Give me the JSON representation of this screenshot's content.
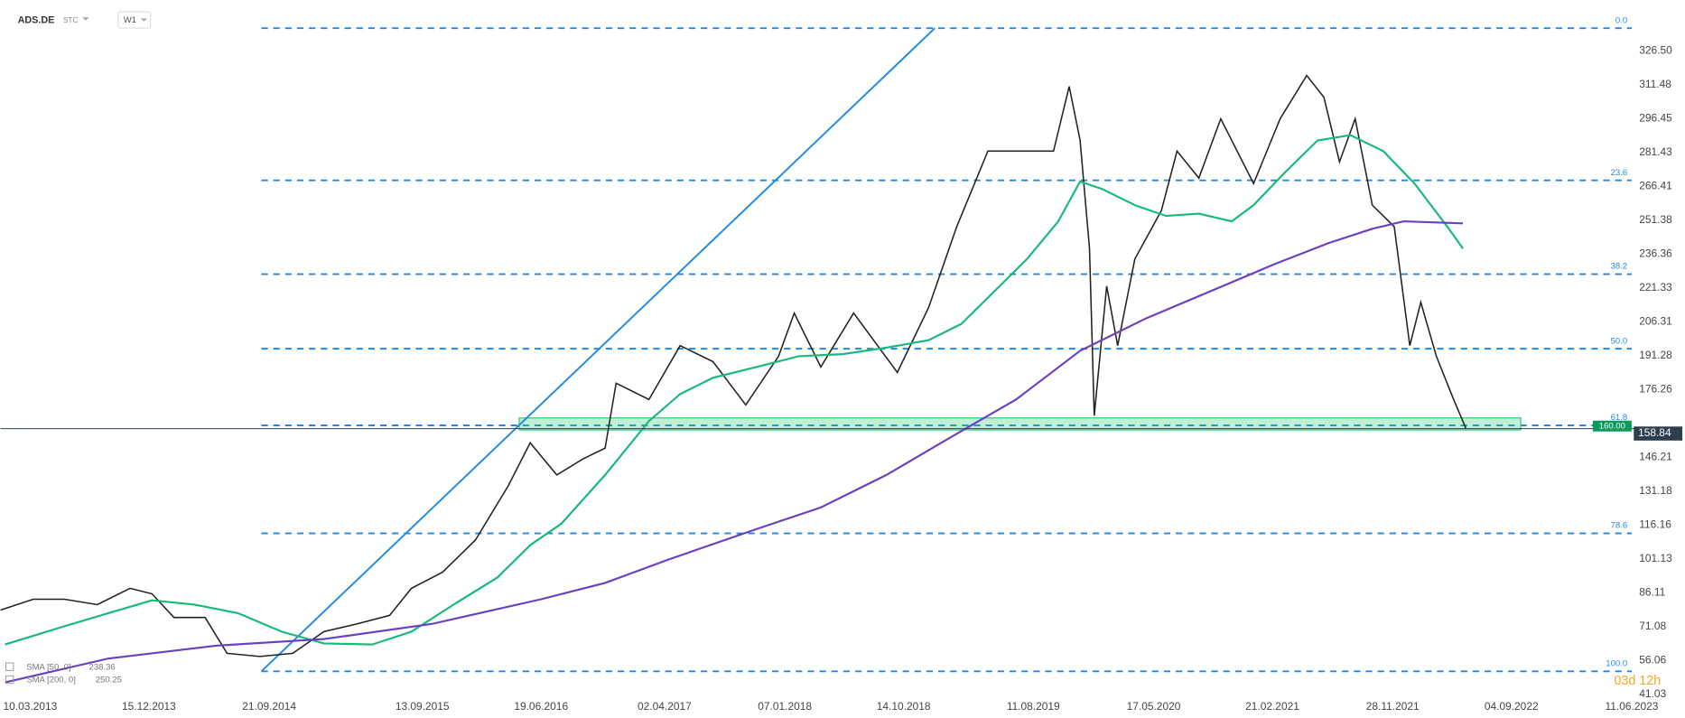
{
  "chart_data": {
    "type": "line",
    "symbol": "ADS.DE",
    "source": "STC",
    "timeframe": "W1",
    "countdown": "03d 12h",
    "xlim": [
      2013.0,
      2023.64
    ],
    "ylim": [
      30.5,
      349.0
    ],
    "xticks": [
      {
        "value": 2013.19,
        "label": "10.03.2013"
      },
      {
        "value": 2013.95,
        "label": "15.12.2013"
      },
      {
        "value": 2014.72,
        "label": "21.09.2014"
      },
      {
        "value": 2015.7,
        "label": "13.09.2015"
      },
      {
        "value": 2016.46,
        "label": "19.06.2016"
      },
      {
        "value": 2017.25,
        "label": "02.04.2017"
      },
      {
        "value": 2018.02,
        "label": "07.01.2018"
      },
      {
        "value": 2018.78,
        "label": "14.10.2018"
      },
      {
        "value": 2019.61,
        "label": "11.08.2019"
      },
      {
        "value": 2020.38,
        "label": "17.05.2020"
      },
      {
        "value": 2021.14,
        "label": "21.02.2021"
      },
      {
        "value": 2021.91,
        "label": "28.11.2021"
      },
      {
        "value": 2022.67,
        "label": "04.09.2022"
      },
      {
        "value": 2023.44,
        "label": "11.06.2023"
      }
    ],
    "yticks": [
      {
        "value": 326.5,
        "label": "326.50"
      },
      311.48,
      296.45,
      281.43,
      266.41,
      251.38,
      236.36,
      221.33,
      206.31,
      191.28,
      176.26,
      146.21,
      131.18,
      116.16,
      101.13,
      86.11,
      71.08,
      56.06,
      41.03
    ],
    "grid": false,
    "series": [
      {
        "name": "ADS.DE",
        "color": "#222222",
        "x": [
          2013.0,
          2013.21,
          2013.41,
          2013.62,
          2013.83,
          2013.97,
          2014.11,
          2014.31,
          2014.45,
          2014.66,
          2014.87,
          2015.07,
          2015.28,
          2015.49,
          2015.63,
          2015.83,
          2016.04,
          2016.25,
          2016.39,
          2016.56,
          2016.73,
          2016.87,
          2016.94,
          2017.15,
          2017.35,
          2017.56,
          2017.77,
          2017.98,
          2018.08,
          2018.25,
          2018.46,
          2018.74,
          2018.94,
          2019.12,
          2019.32,
          2019.53,
          2019.74,
          2019.84,
          2019.91,
          2019.97,
          2020.0,
          2020.08,
          2020.15,
          2020.26,
          2020.43,
          2020.53,
          2020.67,
          2020.81,
          2021.02,
          2021.19,
          2021.36,
          2021.47,
          2021.57,
          2021.67,
          2021.78,
          2021.92,
          2022.02,
          2022.09,
          2022.19,
          2022.3,
          2022.38
        ],
        "values": [
          78.4,
          83.2,
          83.2,
          80.8,
          88.0,
          85.6,
          75.1,
          75.1,
          59.2,
          57.8,
          59.2,
          68.8,
          72.2,
          76.0,
          88.0,
          95.2,
          109.5,
          133.5,
          152.6,
          138.3,
          145.5,
          150.2,
          179.0,
          171.8,
          195.7,
          188.6,
          169.4,
          191.0,
          210.1,
          186.2,
          210.1,
          183.8,
          212.5,
          248.4,
          282.0,
          282.0,
          282.0,
          310.7,
          286.7,
          238.8,
          164.6,
          222.1,
          195.7,
          234.1,
          255.6,
          282.0,
          270.0,
          296.3,
          267.6,
          296.3,
          315.5,
          305.9,
          277.2,
          296.3,
          258.0,
          248.4,
          195.7,
          214.9,
          191.0,
          171.8,
          158.84
        ]
      },
      {
        "name": "SMA [50, 0]",
        "last": 238.36,
        "color": "#17b978",
        "x": [
          2013.03,
          2013.41,
          2013.69,
          2013.97,
          2014.24,
          2014.52,
          2014.8,
          2015.07,
          2015.38,
          2015.63,
          2015.9,
          2016.18,
          2016.39,
          2016.59,
          2016.87,
          2017.15,
          2017.35,
          2017.56,
          2017.84,
          2018.11,
          2018.39,
          2018.67,
          2018.94,
          2019.15,
          2019.36,
          2019.57,
          2019.77,
          2019.91,
          2020.05,
          2020.26,
          2020.46,
          2020.67,
          2020.88,
          2021.02,
          2021.22,
          2021.43,
          2021.64,
          2021.85,
          2022.05,
          2022.26,
          2022.36
        ],
        "values": [
          63.1,
          71.2,
          77.0,
          82.7,
          80.8,
          77.0,
          68.8,
          63.6,
          63.1,
          68.8,
          80.8,
          92.8,
          107.2,
          116.7,
          138.3,
          162.2,
          174.2,
          181.4,
          186.2,
          191.0,
          191.9,
          194.8,
          198.1,
          205.3,
          219.7,
          234.1,
          250.8,
          268.5,
          265.2,
          258.0,
          253.2,
          254.2,
          250.8,
          258.0,
          272.4,
          286.7,
          289.1,
          282.0,
          267.6,
          248.4,
          238.8
        ]
      },
      {
        "name": "SMA [200, 0]",
        "last": 250.25,
        "color": "#6a3fc1",
        "x": [
          2013.03,
          2013.69,
          2014.38,
          2015.07,
          2015.76,
          2016.46,
          2016.87,
          2017.28,
          2017.84,
          2018.25,
          2018.67,
          2019.08,
          2019.5,
          2019.91,
          2020.33,
          2020.74,
          2021.15,
          2021.5,
          2021.78,
          2021.98,
          2022.36
        ],
        "values": [
          46.3,
          56.9,
          62.6,
          65.5,
          72.2,
          83.2,
          90.4,
          100.9,
          114.3,
          123.9,
          138.3,
          155.0,
          171.8,
          193.4,
          207.7,
          219.7,
          231.7,
          241.2,
          247.5,
          250.8,
          249.9
        ]
      }
    ],
    "fibonacci": {
      "color": "#1e88e5",
      "x": [
        2014.67,
        2023.44
      ],
      "levels": [
        {
          "label": "0.0",
          "value": 336.5
        },
        {
          "label": "23.6",
          "value": 269.0
        },
        {
          "label": "38.2",
          "value": 227.4
        },
        {
          "label": "50.0",
          "value": 194.3
        },
        {
          "label": "61.8",
          "value": 160.3
        },
        {
          "label": "78.6",
          "value": 112.4
        },
        {
          "label": "100.0",
          "value": 51.2
        }
      ]
    },
    "trendline": {
      "color": "#1e88e5",
      "x": [
        2014.67,
        2018.98
      ],
      "y": [
        51.2,
        336.5
      ]
    },
    "zone": {
      "color": "#2ecc71",
      "x": [
        2016.32,
        2022.73
      ],
      "y": [
        158.3,
        163.6
      ]
    },
    "last_price": 158.84,
    "alert_level": {
      "value": 160,
      "label": "160.00"
    }
  }
}
